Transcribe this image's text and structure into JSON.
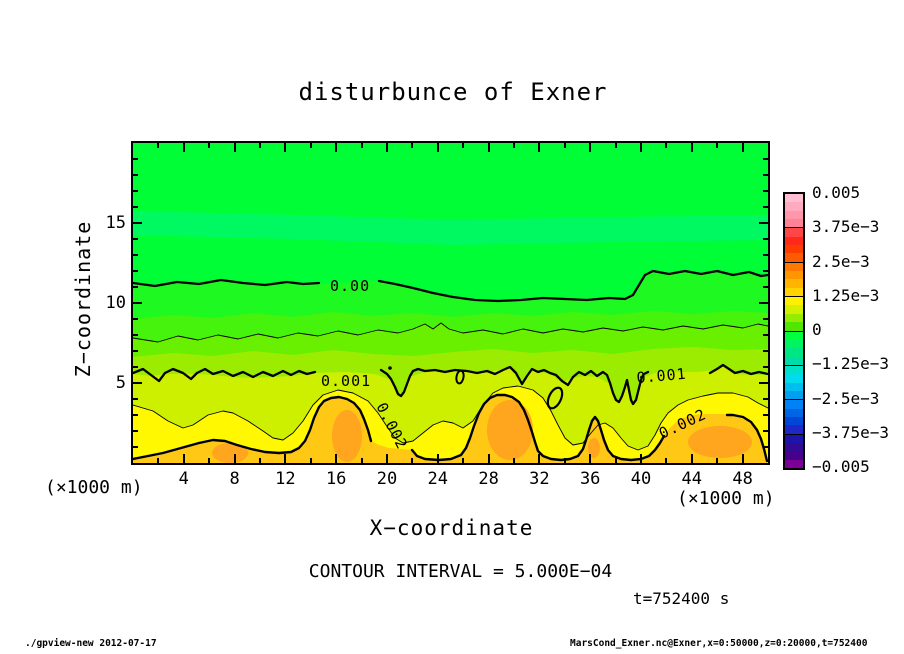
{
  "title": "disturbunce of Exner",
  "axes": {
    "x_label": "X−coordinate",
    "y_label": "Z−coordinate",
    "x_unit": "(×1000 m)",
    "y_unit": "(×1000 m)",
    "x_ticks": [
      4,
      8,
      12,
      16,
      20,
      24,
      28,
      32,
      36,
      40,
      44,
      48
    ],
    "y_ticks": [
      5,
      10,
      15
    ],
    "x_range": [
      0,
      50
    ],
    "y_range": [
      0,
      20
    ]
  },
  "contour_labels": {
    "zero": "0.00",
    "one": "0.001",
    "two": "0.002"
  },
  "annotations": {
    "contour_interval": "CONTOUR INTERVAL = 5.000E−04",
    "time": "t=752400 s",
    "footer_left": "./gpview-new  2012-07-17",
    "footer_right": "MarsCond_Exner.nc@Exner,x=0:50000,z=0:20000,t=752400"
  },
  "colorbar": {
    "labels": [
      "0.005",
      "3.75e−3",
      "2.5e−3",
      "1.25e−3",
      "0",
      "−1.25e−3",
      "−2.5e−3",
      "−3.75e−3",
      "−0.005"
    ],
    "segments": [
      [
        "#ffbed2",
        "#ffaabe",
        "#ff96aa",
        "#ff8296"
      ],
      [
        "#ff4646",
        "#ff2819",
        "#ff3c00",
        "#ff5a00"
      ],
      [
        "#ff7800",
        "#ff9600",
        "#ffb400",
        "#ffd200"
      ],
      [
        "#fff000",
        "#d2f000",
        "#96ec00",
        "#50e600"
      ],
      [
        "#00ff3c",
        "#00f45f",
        "#00e682",
        "#00dca5"
      ],
      [
        "#00e1c8",
        "#00dcec",
        "#00bef0",
        "#009ff0"
      ],
      [
        "#0082f5",
        "#0064e6",
        "#0046d7",
        "#1e28c8"
      ],
      [
        "#1e14aa",
        "#320a96",
        "#46008c",
        "#7d0096"
      ]
    ]
  },
  "chart_data": {
    "type": "contour",
    "title": "disturbunce of Exner",
    "xlabel": "X-coordinate (×1000 m)",
    "ylabel": "Z-coordinate (×1000 m)",
    "xlim": [
      0,
      50
    ],
    "ylim": [
      0,
      20
    ],
    "x_ticks": [
      4,
      8,
      12,
      16,
      20,
      24,
      28,
      32,
      36,
      40,
      44,
      48
    ],
    "y_ticks": [
      5,
      10,
      15
    ],
    "contour_interval": 0.0005,
    "contour_levels_labeled": [
      0.0,
      0.001,
      0.002
    ],
    "contour_levels_thin": [
      0.0005,
      0.0015
    ],
    "colorbar_range": [
      -0.005,
      0.005
    ],
    "colorbar_ticks": [
      0.005,
      0.00375,
      0.0025,
      0.00125,
      0,
      -0.00125,
      -0.0025,
      -0.00375,
      -0.005
    ],
    "time_seconds": 752400,
    "zero_contour_line": {
      "x_km": [
        0,
        5,
        10,
        15,
        20,
        25,
        30,
        35,
        39,
        41,
        45,
        50
      ],
      "z_km": [
        11.3,
        11.4,
        11.2,
        10.9,
        10.5,
        10.2,
        10.3,
        10.2,
        10.3,
        11.9,
        11.8,
        11.7
      ]
    },
    "contour_0001_mean_z_km": 5.7,
    "contour_0002_peaks": {
      "x_km": [
        7,
        16,
        29,
        36,
        45
      ],
      "z_km": [
        1.5,
        4.1,
        4.3,
        2.9,
        3.8
      ]
    },
    "field_range_approx": [
      -0.0006,
      0.0026
    ],
    "legend_position": "right-colorbar",
    "grid": false
  }
}
